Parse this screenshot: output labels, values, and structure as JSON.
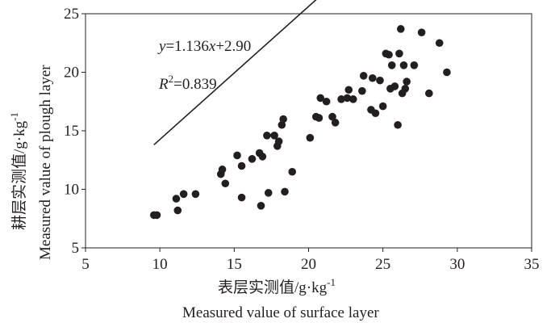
{
  "chart_data": {
    "type": "scatter",
    "xlabel_cn": "表层实测值/g·kg",
    "xlabel_cn_sup": "-1",
    "xlabel_en": "Measured value of surface layer",
    "ylabel_cn": "耕层实测值/g·kg",
    "ylabel_cn_sup": "-1",
    "ylabel_en": "Measured value of plough layer",
    "xlim": [
      5,
      35
    ],
    "ylim": [
      5,
      25
    ],
    "x_ticks": [
      5,
      10,
      15,
      20,
      25,
      30,
      35
    ],
    "y_ticks": [
      5,
      10,
      15,
      20,
      25
    ],
    "equation": {
      "y_var": "y",
      "rest": "=1.136",
      "x_var": "x",
      "tail": "+2.90",
      "r2_var": "R",
      "r2_sup": "2",
      "r2_value": "=0.839"
    },
    "fit_line": {
      "slope": 1.136,
      "intercept": 2.9,
      "x_range": [
        9.6,
        29.3
      ]
    },
    "marker_color": "#231f20",
    "points": [
      [
        9.6,
        7.8
      ],
      [
        9.8,
        7.8
      ],
      [
        11.1,
        9.2
      ],
      [
        11.2,
        8.2
      ],
      [
        11.6,
        9.6
      ],
      [
        12.4,
        9.6
      ],
      [
        14.1,
        11.3
      ],
      [
        14.2,
        11.7
      ],
      [
        14.4,
        10.5
      ],
      [
        15.2,
        12.9
      ],
      [
        15.5,
        9.3
      ],
      [
        15.5,
        12.0
      ],
      [
        16.2,
        12.6
      ],
      [
        16.7,
        13.1
      ],
      [
        16.8,
        8.6
      ],
      [
        16.9,
        12.8
      ],
      [
        17.2,
        14.6
      ],
      [
        17.3,
        9.7
      ],
      [
        17.7,
        14.6
      ],
      [
        17.9,
        13.7
      ],
      [
        18.0,
        14.1
      ],
      [
        18.2,
        15.5
      ],
      [
        18.3,
        16.0
      ],
      [
        18.4,
        9.8
      ],
      [
        18.9,
        11.5
      ],
      [
        20.1,
        14.4
      ],
      [
        20.5,
        16.2
      ],
      [
        20.7,
        16.1
      ],
      [
        20.8,
        17.8
      ],
      [
        21.2,
        17.5
      ],
      [
        21.6,
        16.2
      ],
      [
        21.8,
        15.7
      ],
      [
        22.2,
        17.7
      ],
      [
        22.6,
        17.8
      ],
      [
        22.7,
        18.5
      ],
      [
        23.0,
        17.7
      ],
      [
        23.6,
        18.4
      ],
      [
        23.7,
        19.7
      ],
      [
        24.2,
        16.8
      ],
      [
        24.3,
        19.5
      ],
      [
        24.5,
        16.5
      ],
      [
        24.8,
        19.3
      ],
      [
        25.0,
        17.1
      ],
      [
        25.2,
        21.6
      ],
      [
        25.4,
        21.5
      ],
      [
        25.5,
        18.6
      ],
      [
        25.6,
        20.6
      ],
      [
        25.8,
        18.8
      ],
      [
        26.0,
        15.5
      ],
      [
        26.1,
        21.6
      ],
      [
        26.2,
        23.7
      ],
      [
        26.3,
        18.2
      ],
      [
        26.4,
        20.6
      ],
      [
        26.5,
        18.6
      ],
      [
        26.6,
        19.2
      ],
      [
        27.1,
        20.6
      ],
      [
        27.6,
        23.4
      ],
      [
        28.1,
        18.2
      ],
      [
        28.8,
        22.5
      ],
      [
        29.3,
        20.0
      ]
    ]
  }
}
